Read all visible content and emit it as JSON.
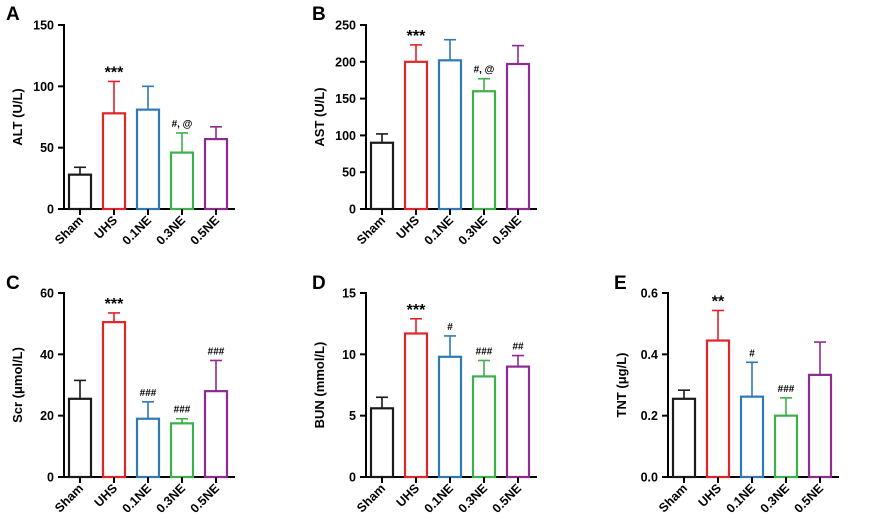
{
  "figure": {
    "categories": [
      "Sham",
      "UHS",
      "0.1NE",
      "0.3NE",
      "0.5NE"
    ],
    "series_colors": [
      "#1a1a1a",
      "#e0242a",
      "#2f79b5",
      "#3db04b",
      "#8e2b91"
    ]
  },
  "chart_data": [
    {
      "type": "bar",
      "panel": "A",
      "title": "",
      "xlabel": "",
      "ylabel": "ALT (U/L)",
      "ylim": [
        0,
        150
      ],
      "yticks": [
        0,
        50,
        100,
        150
      ],
      "categories": [
        "Sham",
        "UHS",
        "0.1NE",
        "0.3NE",
        "0.5NE"
      ],
      "values": [
        28,
        78,
        81,
        46,
        57
      ],
      "errors": [
        6,
        26,
        19,
        16,
        10
      ],
      "annotations": [
        "",
        "***",
        "",
        "#, @",
        ""
      ]
    },
    {
      "type": "bar",
      "panel": "B",
      "title": "",
      "xlabel": "",
      "ylabel": "AST (U/L)",
      "ylim": [
        0,
        250
      ],
      "yticks": [
        0,
        50,
        100,
        150,
        200,
        250
      ],
      "categories": [
        "Sham",
        "UHS",
        "0.1NE",
        "0.3NE",
        "0.5NE"
      ],
      "values": [
        90,
        200,
        202,
        160,
        197
      ],
      "errors": [
        12,
        23,
        28,
        17,
        25
      ],
      "annotations": [
        "",
        "***",
        "",
        "#, @",
        ""
      ]
    },
    {
      "type": "bar",
      "panel": "C",
      "title": "",
      "xlabel": "",
      "ylabel": "Scr (μmol/L)",
      "ylim": [
        0,
        60
      ],
      "yticks": [
        0,
        20,
        40,
        60
      ],
      "categories": [
        "Sham",
        "UHS",
        "0.1NE",
        "0.3NE",
        "0.5NE"
      ],
      "values": [
        25.5,
        50.5,
        19,
        17.5,
        28
      ],
      "errors": [
        6,
        3,
        5.5,
        1.5,
        10
      ],
      "annotations": [
        "",
        "***",
        "###",
        "###",
        "###"
      ]
    },
    {
      "type": "bar",
      "panel": "D",
      "title": "",
      "xlabel": "",
      "ylabel": "BUN (mmol/L)",
      "ylim": [
        0,
        15
      ],
      "yticks": [
        0,
        5,
        10,
        15
      ],
      "categories": [
        "Sham",
        "UHS",
        "0.1NE",
        "0.3NE",
        "0.5NE"
      ],
      "values": [
        5.6,
        11.7,
        9.8,
        8.2,
        9
      ],
      "errors": [
        0.9,
        1.2,
        1.7,
        1.3,
        0.9
      ],
      "annotations": [
        "",
        "***",
        "#",
        "###",
        "##"
      ]
    },
    {
      "type": "bar",
      "panel": "E",
      "title": "",
      "xlabel": "",
      "ylabel": "TNT (μg/L)",
      "ylim": [
        0,
        0.6
      ],
      "yticks": [
        0.0,
        0.2,
        0.4,
        0.6
      ],
      "ytick_labels": [
        "0.0",
        "0.2",
        "0.4",
        "0.6"
      ],
      "categories": [
        "Sham",
        "UHS",
        "0.1NE",
        "0.3NE",
        "0.5NE"
      ],
      "values": [
        0.255,
        0.445,
        0.262,
        0.2,
        0.333
      ],
      "errors": [
        0.028,
        0.098,
        0.112,
        0.058,
        0.107
      ],
      "annotations": [
        "",
        "**",
        "#",
        "###",
        ""
      ]
    }
  ]
}
